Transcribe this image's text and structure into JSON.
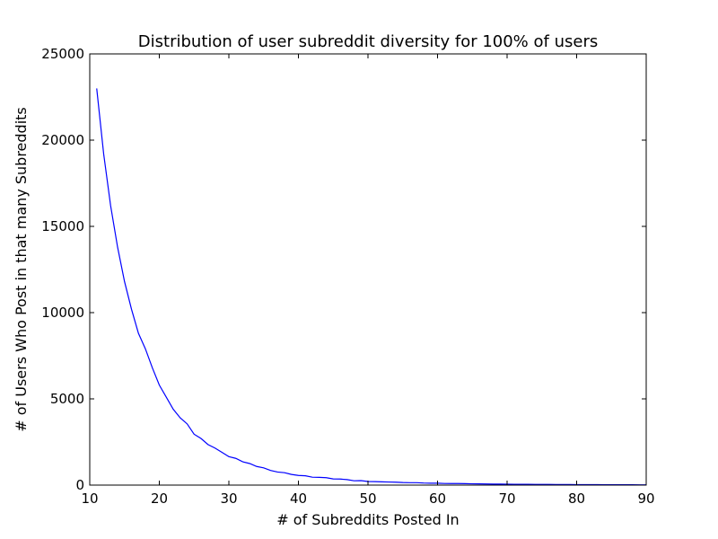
{
  "chart_data": {
    "type": "line",
    "title": "Distribution of user subreddit diversity for 100% of users",
    "xlabel": "# of Subreddits Posted In",
    "ylabel": "# of Users Who Post in that many Subreddits",
    "xlim": [
      10,
      90
    ],
    "ylim": [
      0,
      25000
    ],
    "xticks": [
      10,
      20,
      30,
      40,
      50,
      60,
      70,
      80,
      90
    ],
    "yticks": [
      0,
      5000,
      10000,
      15000,
      20000,
      25000
    ],
    "grid": false,
    "legend": "none",
    "line_color": "#0000ff",
    "series": [
      {
        "x": [
          11,
          12,
          13,
          14,
          15,
          16,
          17,
          18,
          19,
          20,
          21,
          22,
          23,
          24,
          25,
          26,
          27,
          28,
          29,
          30,
          31,
          32,
          33,
          34,
          35,
          36,
          37,
          38,
          39,
          40,
          41,
          42,
          43,
          44,
          45,
          46,
          47,
          48,
          49,
          50,
          51,
          52,
          53,
          54,
          55,
          56,
          57,
          58,
          59,
          60,
          61,
          62,
          63,
          64,
          65,
          66,
          67,
          68,
          69,
          70,
          71,
          72,
          73,
          74,
          75,
          76,
          77,
          78,
          79,
          80,
          81,
          82,
          83,
          84,
          85,
          86,
          87,
          88,
          89,
          90
        ],
        "y": [
          23000,
          19200,
          16200,
          13800,
          11800,
          10200,
          8800,
          7900,
          6800,
          5800,
          5100,
          4400,
          3900,
          3550,
          2950,
          2700,
          2350,
          2150,
          1900,
          1650,
          1550,
          1350,
          1250,
          1080,
          1000,
          850,
          760,
          720,
          620,
          560,
          540,
          460,
          450,
          430,
          360,
          350,
          320,
          250,
          260,
          210,
          200,
          190,
          180,
          170,
          150,
          140,
          140,
          120,
          110,
          110,
          95,
          90,
          90,
          85,
          75,
          70,
          65,
          60,
          60,
          55,
          50,
          48,
          45,
          42,
          40,
          38,
          36,
          34,
          32,
          30,
          28,
          26,
          25,
          24,
          22,
          20,
          19,
          18,
          17,
          16
        ]
      }
    ]
  }
}
